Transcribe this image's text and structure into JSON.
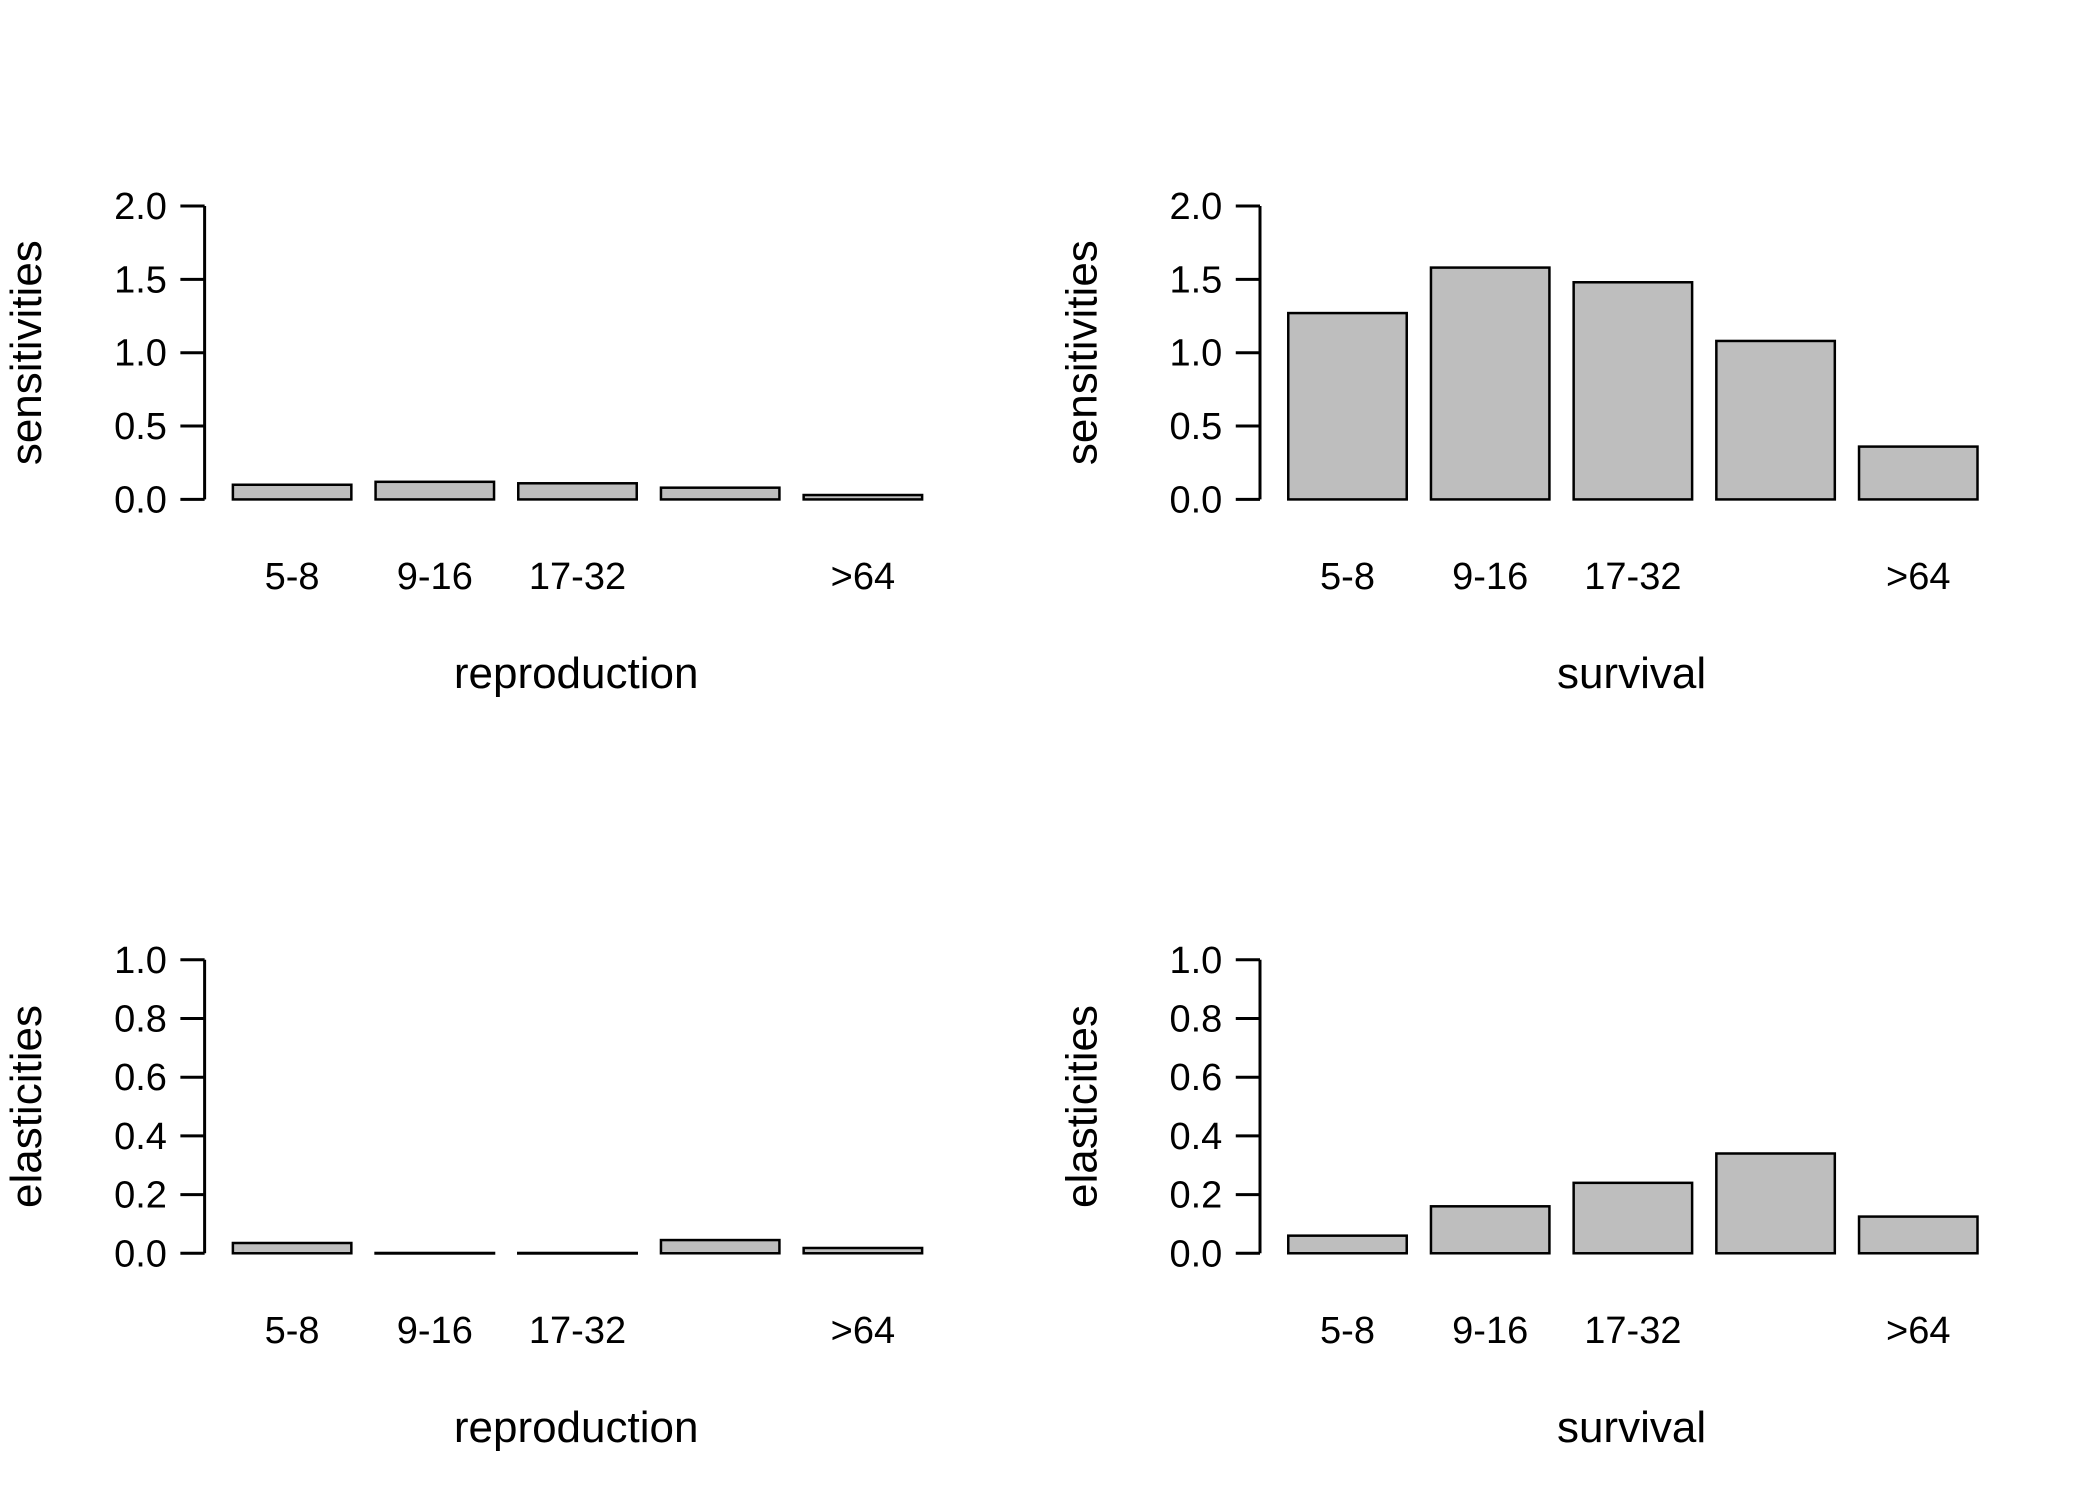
{
  "bar_fill": "#bebebe",
  "chart_data": [
    {
      "type": "bar",
      "title": "",
      "xlabel": "reproduction",
      "ylabel": "sensitivities",
      "categories": [
        "5-8",
        "9-16",
        "17-32",
        "",
        ">64"
      ],
      "values": [
        0.1,
        0.12,
        0.11,
        0.08,
        0.03
      ],
      "ylim": [
        0,
        2
      ],
      "yticks": [
        "0.0",
        "0.5",
        "1.0",
        "1.5",
        "2.0"
      ],
      "grid": false
    },
    {
      "type": "bar",
      "title": "",
      "xlabel": "survival",
      "ylabel": "sensitivities",
      "categories": [
        "5-8",
        "9-16",
        "17-32",
        "",
        ">64"
      ],
      "values": [
        1.27,
        1.58,
        1.48,
        1.08,
        0.36
      ],
      "ylim": [
        0,
        2
      ],
      "yticks": [
        "0.0",
        "0.5",
        "1.0",
        "1.5",
        "2.0"
      ],
      "grid": false
    },
    {
      "type": "bar",
      "title": "",
      "xlabel": "reproduction",
      "ylabel": "elasticities",
      "categories": [
        "5-8",
        "9-16",
        "17-32",
        "",
        ">64"
      ],
      "values": [
        0.035,
        0.001,
        0.001,
        0.045,
        0.018
      ],
      "ylim": [
        0,
        1
      ],
      "yticks": [
        "0.0",
        "0.2",
        "0.4",
        "0.6",
        "0.8",
        "1.0"
      ],
      "grid": false
    },
    {
      "type": "bar",
      "title": "",
      "xlabel": "survival",
      "ylabel": "elasticities",
      "categories": [
        "5-8",
        "9-16",
        "17-32",
        "",
        ">64"
      ],
      "values": [
        0.06,
        0.16,
        0.24,
        0.34,
        0.125
      ],
      "ylim": [
        0,
        1
      ],
      "yticks": [
        "0.0",
        "0.2",
        "0.4",
        "0.6",
        "0.8",
        "1.0"
      ],
      "grid": false
    }
  ]
}
